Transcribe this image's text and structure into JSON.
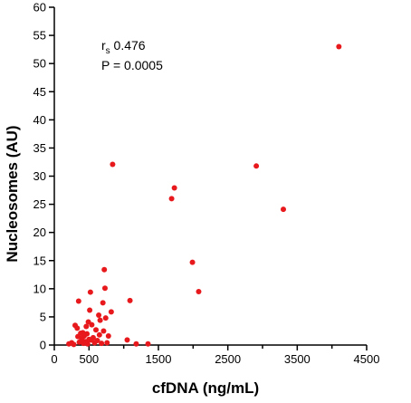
{
  "chart_data": {
    "type": "scatter",
    "title": "",
    "xlabel": "cfDNA (ng/mL)",
    "ylabel": "Nucleosomes (AU)",
    "xlim": [
      0,
      4500
    ],
    "ylim": [
      0,
      60
    ],
    "x_ticks": [
      "0",
      "500",
      "1500",
      "2500",
      "3500",
      "4500"
    ],
    "y_ticks": [
      "0",
      "5",
      "10",
      "15",
      "20",
      "25",
      "30",
      "35",
      "40",
      "45",
      "50",
      "55",
      "60"
    ],
    "grid": false,
    "legend": "none",
    "point_color": "#e8191c",
    "annotation": {
      "r_symbol": "r",
      "r_subscript": "s",
      "r_value": " 0.476",
      "p_text": "P = 0.0005"
    },
    "series": [
      {
        "points": [
          [
            210,
            0.2
          ],
          [
            250,
            0.4
          ],
          [
            280,
            0.1
          ],
          [
            300,
            3.5
          ],
          [
            330,
            3.0
          ],
          [
            340,
            1.5
          ],
          [
            350,
            7.8
          ],
          [
            360,
            0.5
          ],
          [
            380,
            2.1
          ],
          [
            390,
            0.8
          ],
          [
            400,
            1.2
          ],
          [
            410,
            2.2
          ],
          [
            420,
            0.3
          ],
          [
            430,
            1.6
          ],
          [
            440,
            1.9
          ],
          [
            450,
            0.6
          ],
          [
            460,
            3.3
          ],
          [
            470,
            2.0
          ],
          [
            480,
            0.2
          ],
          [
            490,
            4.1
          ],
          [
            500,
            1.0
          ],
          [
            510,
            6.2
          ],
          [
            520,
            9.4
          ],
          [
            530,
            0.9
          ],
          [
            540,
            3.6
          ],
          [
            560,
            1.3
          ],
          [
            580,
            0.4
          ],
          [
            600,
            2.7
          ],
          [
            620,
            0.8
          ],
          [
            640,
            5.3
          ],
          [
            650,
            1.8
          ],
          [
            660,
            4.4
          ],
          [
            680,
            0.3
          ],
          [
            700,
            7.5
          ],
          [
            710,
            2.5
          ],
          [
            720,
            13.4
          ],
          [
            730,
            10.1
          ],
          [
            740,
            4.8
          ],
          [
            760,
            0.4
          ],
          [
            780,
            1.6
          ],
          [
            820,
            5.9
          ],
          [
            840,
            32.1
          ],
          [
            1050,
            0.9
          ],
          [
            1090,
            7.9
          ],
          [
            1180,
            0.2
          ],
          [
            1350,
            0.2
          ],
          [
            1690,
            26.0
          ],
          [
            1730,
            27.9
          ],
          [
            1990,
            14.7
          ],
          [
            2080,
            9.5
          ],
          [
            2910,
            31.8
          ],
          [
            3300,
            24.1
          ],
          [
            4100,
            53.0
          ]
        ]
      }
    ]
  }
}
